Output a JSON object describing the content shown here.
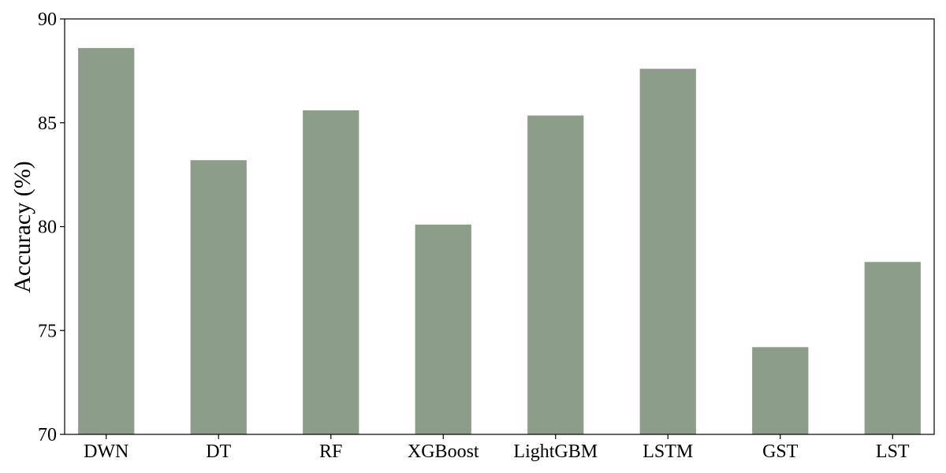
{
  "chart_data": {
    "type": "bar",
    "title": "",
    "xlabel": "",
    "ylabel": "Accuracy (%)",
    "categories": [
      "DWN",
      "DT",
      "RF",
      "XGBoost",
      "LightGBM",
      "LSTM",
      "GST",
      "LST"
    ],
    "values": [
      88.6,
      83.2,
      85.6,
      80.1,
      85.35,
      87.6,
      74.2,
      78.3
    ],
    "ylim": [
      70,
      90
    ],
    "yticks": [
      70,
      75,
      80,
      85,
      90
    ],
    "bar_color": "#8c9e89",
    "grid": false,
    "legend": "none"
  }
}
